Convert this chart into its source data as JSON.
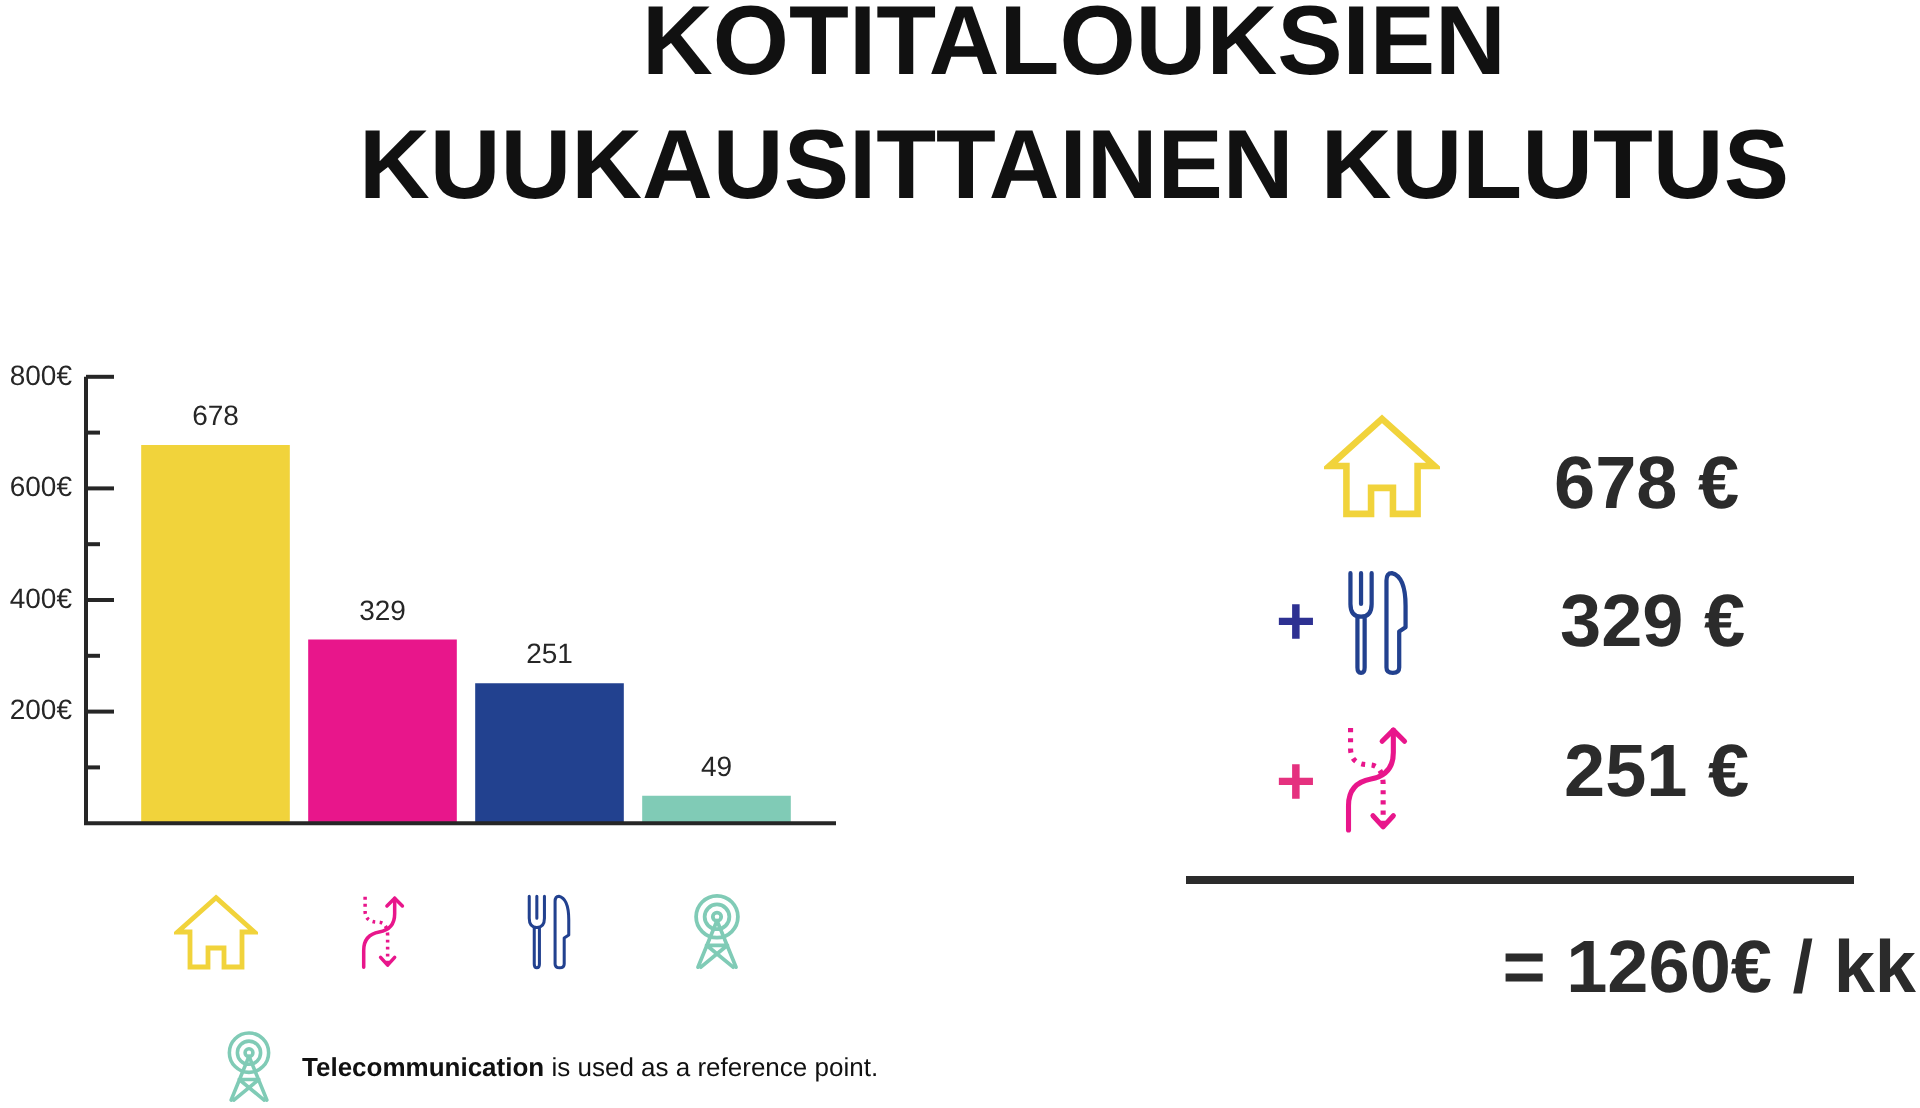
{
  "chart_data": [
    {
      "type": "bar",
      "title": "KOTITALOUKSIEN KUUKAUSITTAINEN KULUTUS",
      "categories": [
        null,
        null,
        null,
        null
      ],
      "values": [
        678,
        329,
        251,
        49
      ],
      "colors": [
        "#f1d33b",
        "#e8168b",
        "#22418f",
        "#80cbb6"
      ],
      "ylim": [
        0,
        800
      ],
      "yticks": [
        {
          "value": 100,
          "label": null
        },
        {
          "value": 200,
          "label": "200€"
        },
        {
          "value": 300,
          "label": null
        },
        {
          "value": 400,
          "label": "400€"
        },
        {
          "value": 500,
          "label": null
        },
        {
          "value": 600,
          "label": "600€"
        },
        {
          "value": 700,
          "label": null
        },
        {
          "value": 800,
          "label": "800€"
        }
      ],
      "data_labels": true,
      "annotations": [
        "Telecommunication is used as a reference point."
      ]
    },
    {
      "type": "other",
      "annotations": [
        "678 €",
        "+",
        "329 €",
        "+",
        "251 €",
        "= 1260€ / kk"
      ]
    }
  ]
}
